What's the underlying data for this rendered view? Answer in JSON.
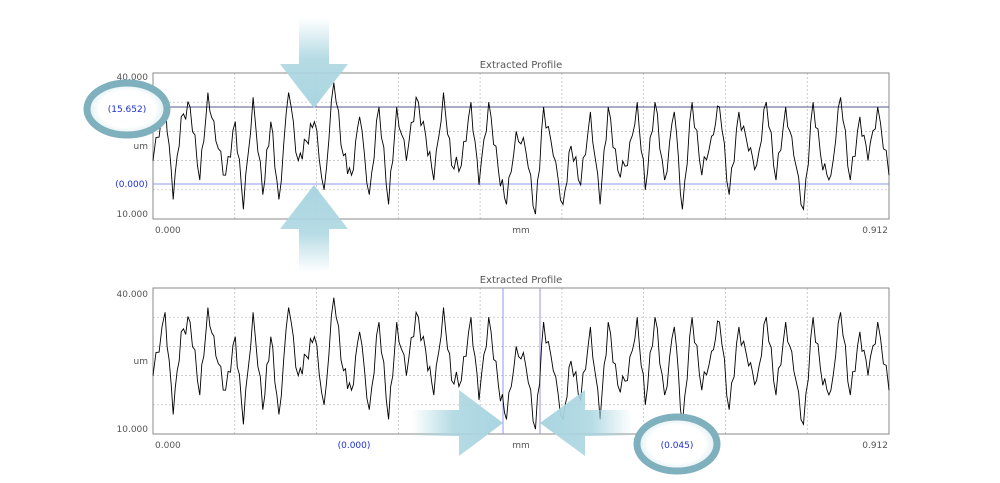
{
  "chart_data": [
    {
      "type": "line",
      "title": "Extracted Profile",
      "xlabel": "mm",
      "ylabel": "um",
      "xlim": [
        0.0,
        0.912
      ],
      "ylim": [
        10.0,
        40.0
      ],
      "x_tick_labels": [
        "0.000",
        "0.912"
      ],
      "y_tick_labels": [
        "40.000",
        "10.000"
      ],
      "grid": true,
      "horizontal_cursor_labels": [
        "(15.652)",
        "(0.000)"
      ],
      "series": [
        {
          "x": [
            0.0,
            0.015,
            0.025,
            0.035,
            0.046,
            0.058,
            0.068,
            0.078,
            0.09,
            0.102,
            0.112,
            0.124,
            0.136,
            0.146,
            0.156,
            0.168,
            0.18,
            0.19,
            0.2,
            0.212,
            0.224,
            0.236,
            0.246,
            0.256,
            0.268,
            0.28,
            0.292,
            0.302,
            0.314,
            0.326,
            0.338,
            0.348,
            0.36,
            0.37,
            0.382,
            0.394,
            0.404,
            0.416,
            0.428,
            0.438,
            0.45,
            0.462,
            0.474,
            0.484,
            0.496,
            0.508,
            0.518,
            0.53,
            0.542,
            0.554,
            0.564,
            0.576,
            0.588,
            0.6,
            0.61,
            0.622,
            0.634,
            0.646,
            0.656,
            0.668,
            0.68,
            0.692,
            0.702,
            0.714,
            0.726,
            0.738,
            0.748,
            0.76,
            0.772,
            0.784,
            0.794,
            0.806,
            0.818,
            0.83,
            0.84,
            0.852,
            0.864,
            0.876,
            0.886,
            0.898,
            0.912
          ],
          "values": [
            22,
            35,
            14,
            31,
            33,
            18,
            36,
            26,
            19,
            30,
            12,
            35,
            15,
            30,
            14,
            36,
            22,
            26,
            30,
            16,
            38,
            23,
            19,
            31,
            15,
            33,
            13,
            33,
            22,
            35,
            27,
            18,
            36,
            21,
            21,
            34,
            17,
            34,
            20,
            13,
            28,
            24,
            11,
            33,
            23,
            13,
            25,
            17,
            32,
            13,
            33,
            20,
            21,
            34,
            16,
            34,
            18,
            32,
            12,
            34,
            19,
            27,
            33,
            15,
            32,
            24,
            21,
            34,
            18,
            33,
            23,
            12,
            34,
            20,
            19,
            35,
            18,
            31,
            22,
            33,
            19
          ]
        }
      ]
    },
    {
      "type": "line",
      "title": "Extracted Profile",
      "xlabel": "mm",
      "ylabel": "um",
      "xlim": [
        0.0,
        0.912
      ],
      "ylim": [
        10.0,
        40.0
      ],
      "x_tick_labels": [
        "0.000",
        "0.912"
      ],
      "y_tick_labels": [
        "40.000",
        "10.000"
      ],
      "grid": true,
      "vertical_cursor_labels": [
        "(0.000)",
        "(0.045)"
      ],
      "series": [
        {
          "x": [
            0.0,
            0.015,
            0.025,
            0.035,
            0.046,
            0.058,
            0.068,
            0.078,
            0.09,
            0.102,
            0.112,
            0.124,
            0.136,
            0.146,
            0.156,
            0.168,
            0.18,
            0.19,
            0.2,
            0.212,
            0.224,
            0.236,
            0.246,
            0.256,
            0.268,
            0.28,
            0.292,
            0.302,
            0.314,
            0.326,
            0.338,
            0.348,
            0.36,
            0.37,
            0.382,
            0.394,
            0.404,
            0.416,
            0.428,
            0.438,
            0.45,
            0.462,
            0.474,
            0.484,
            0.496,
            0.508,
            0.518,
            0.53,
            0.542,
            0.554,
            0.564,
            0.576,
            0.588,
            0.6,
            0.61,
            0.622,
            0.634,
            0.646,
            0.656,
            0.668,
            0.68,
            0.692,
            0.702,
            0.714,
            0.726,
            0.738,
            0.748,
            0.76,
            0.772,
            0.784,
            0.794,
            0.806,
            0.818,
            0.83,
            0.84,
            0.852,
            0.864,
            0.876,
            0.886,
            0.898,
            0.912
          ],
          "values": [
            22,
            35,
            14,
            31,
            33,
            18,
            36,
            26,
            19,
            30,
            12,
            35,
            15,
            30,
            14,
            36,
            22,
            26,
            30,
            16,
            38,
            23,
            19,
            31,
            15,
            33,
            13,
            33,
            22,
            35,
            27,
            18,
            36,
            21,
            21,
            34,
            17,
            34,
            20,
            13,
            28,
            24,
            11,
            33,
            23,
            13,
            25,
            17,
            32,
            13,
            33,
            20,
            21,
            34,
            16,
            34,
            18,
            32,
            12,
            34,
            19,
            27,
            33,
            15,
            32,
            24,
            21,
            34,
            18,
            33,
            23,
            12,
            34,
            20,
            19,
            35,
            18,
            31,
            22,
            33,
            19
          ]
        }
      ]
    }
  ],
  "colors": {
    "profile_line": "#000000",
    "cursor": "#1f2fd6",
    "grid": "#b8b8b8",
    "frame": "#8a8a8a",
    "arrow": "#a9d5e0",
    "callout": "#7fb0bd"
  }
}
